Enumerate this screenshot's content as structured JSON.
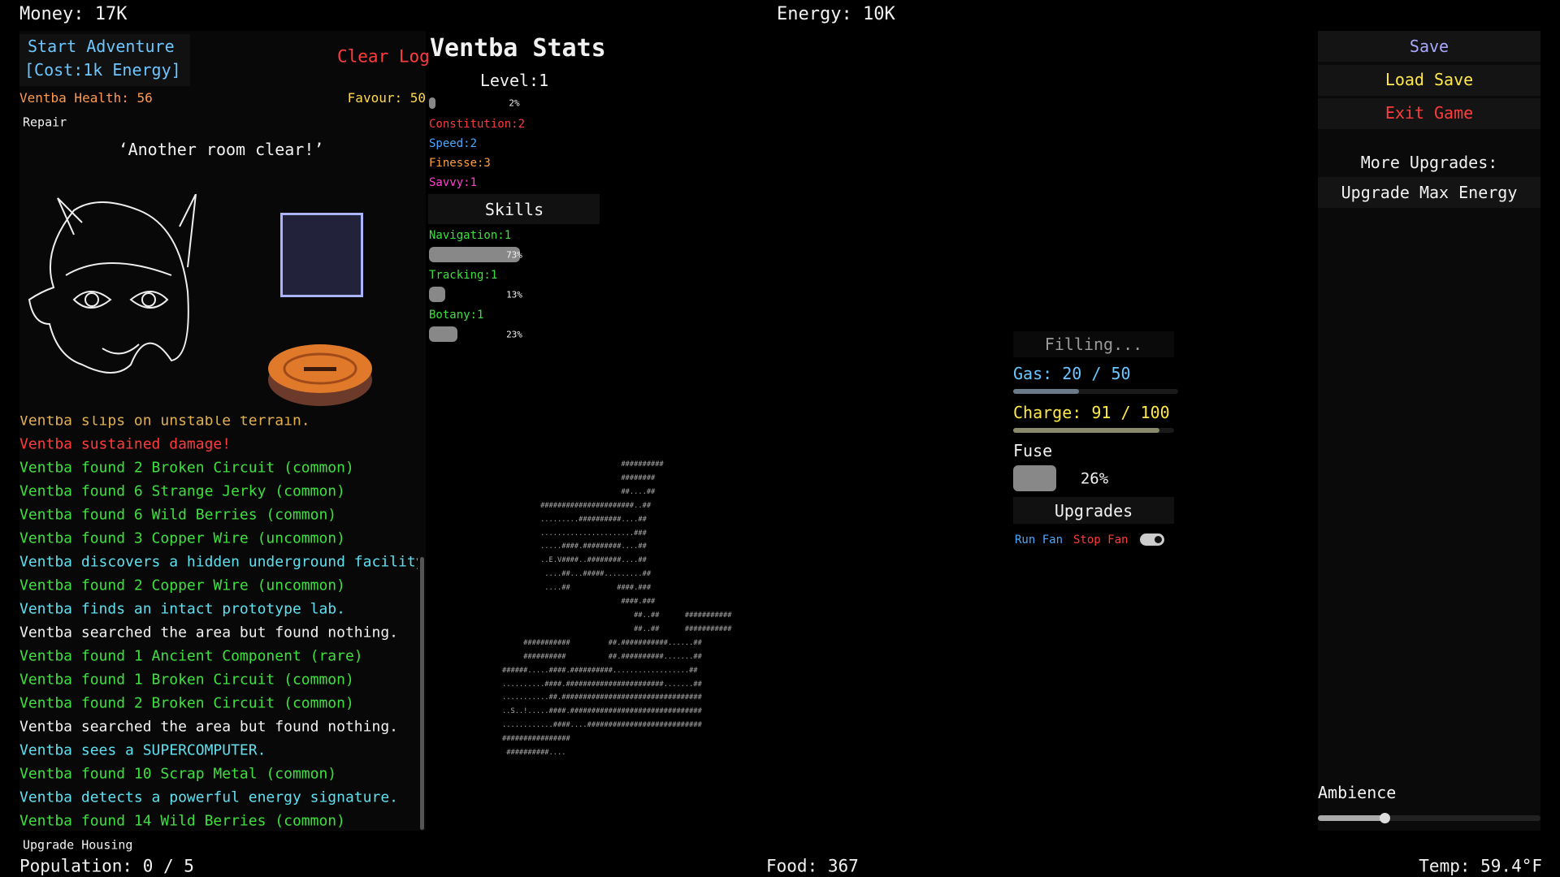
{
  "top": {
    "money": "Money: 17K",
    "energy": "Energy: 10K"
  },
  "adventure": {
    "start": "Start Adventure",
    "cost": "[Cost:1k Energy]",
    "clear_log": "Clear Log",
    "health": "Ventba Health: 56",
    "favour": "Favour: 50",
    "repair": "Repair",
    "quote": "‘Another room clear!’"
  },
  "log": [
    {
      "text": "Ventba slips on unstable terrain.",
      "color": "#e0b050"
    },
    {
      "text": "Ventba sustained damage!",
      "color": "#ff3b3b"
    },
    {
      "text": "Ventba found 2 Broken Circuit (common)",
      "color": "#3ee03e"
    },
    {
      "text": "Ventba found 6 Strange Jerky (common)",
      "color": "#3ee03e"
    },
    {
      "text": "Ventba found 6 Wild Berries (common)",
      "color": "#3ee03e"
    },
    {
      "text": "Ventba found 3 Copper Wire (uncommon)",
      "color": "#3ee03e"
    },
    {
      "text": "Ventba discovers a hidden underground facility.",
      "color": "#5ee0f0"
    },
    {
      "text": "Ventba found 2 Copper Wire (uncommon)",
      "color": "#3ee03e"
    },
    {
      "text": "Ventba finds an intact prototype lab.",
      "color": "#5ee0f0"
    },
    {
      "text": "Ventba searched the area but found nothing.",
      "color": "#f2f2f2"
    },
    {
      "text": "Ventba found 1 Ancient Component (rare)",
      "color": "#3ee03e"
    },
    {
      "text": "Ventba found 1 Broken Circuit (common)",
      "color": "#3ee03e"
    },
    {
      "text": "Ventba found 2 Broken Circuit (common)",
      "color": "#3ee03e"
    },
    {
      "text": "Ventba searched the area but found nothing.",
      "color": "#f2f2f2"
    },
    {
      "text": "Ventba sees a SUPERCOMPUTER.",
      "color": "#5ee0f0"
    },
    {
      "text": "Ventba found 10 Scrap Metal (common)",
      "color": "#3ee03e"
    },
    {
      "text": "Ventba detects a powerful energy signature.",
      "color": "#5ee0f0"
    },
    {
      "text": "Ventba found 14 Wild Berries (common)",
      "color": "#3ee03e"
    }
  ],
  "stats": {
    "title": "Ventba Stats",
    "level": "Level:1",
    "level_progress": {
      "value": 2,
      "label": "2%"
    },
    "attributes": [
      {
        "text": "Constitution:2",
        "color": "#ff3b3b"
      },
      {
        "text": "Speed:2",
        "color": "#4aa8ff"
      },
      {
        "text": "Finesse:3",
        "color": "#ffa040"
      },
      {
        "text": "Savvy:1",
        "color": "#ff40d0"
      }
    ],
    "skills_title": "Skills",
    "skills": [
      {
        "name": "Navigation:1",
        "value": 73,
        "label": "73%"
      },
      {
        "name": "Tracking:1",
        "value": 13,
        "label": "13%"
      },
      {
        "name": "Botany:1",
        "value": 23,
        "label": "23%"
      }
    ]
  },
  "map": [
    "                            ##########",
    "                            ########",
    "                            ##....##",
    "         ######################..##",
    "         .........##########....##",
    "         ......................###",
    "         .....####.#########....##",
    "         ..E.V####..########....##",
    "          ....##...#####.........##",
    "          ....##           ####.###",
    "                            ####.###",
    "                               ##..##      ###########",
    "                               ##..##      ###########",
    "     ###########         ##.###########......##",
    "     ##########          ##.##########.......##",
    "######.....####.##########..................##",
    "..........####.#######################.......##",
    "...........##.#################################",
    "..S..!.....####.###############################",
    "............####....###########################",
    "################",
    " ##########...."
  ],
  "machine": {
    "status": "Filling...",
    "gas": {
      "label": "Gas:",
      "value": 20,
      "sep": "/",
      "max": 50
    },
    "charge": {
      "label": "Charge:",
      "value": 91,
      "sep": "/",
      "max": 100
    },
    "fuse": {
      "label": "Fuse",
      "value": 26,
      "text": "26%"
    },
    "upgrades": "Upgrades",
    "run_fan": "Run Fan",
    "stop_fan": "Stop Fan",
    "fan_on": true
  },
  "menu": {
    "save": "Save",
    "load": "Load Save",
    "exit": "Exit Game",
    "more": "More Upgrades:",
    "max_energy": "Upgrade Max Energy",
    "ambience": "Ambience",
    "ambience_value": 30
  },
  "bottom": {
    "upgrade_housing": "Upgrade Housing",
    "population": "Population: 0 / 5",
    "food": "Food: 367",
    "temp": "Temp: 59.4°F"
  }
}
